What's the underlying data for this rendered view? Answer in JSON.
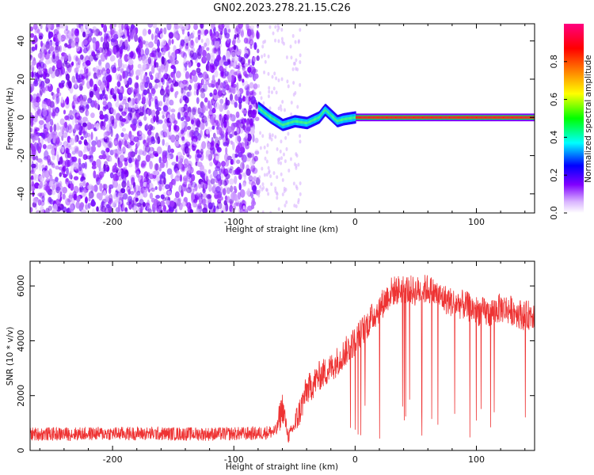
{
  "title": "GN02.2023.278.21.15.C26",
  "chart_data": [
    {
      "type": "heatmap",
      "title": "GN02.2023.278.21.15.C26",
      "xlabel": "Height of straight line (km)",
      "ylabel": "Frequency (Hz)",
      "xlim": [
        -268,
        148
      ],
      "ylim": [
        -50,
        49
      ],
      "x_ticks": [
        -200,
        -100,
        0,
        100
      ],
      "y_ticks": [
        -40,
        -20,
        0,
        20,
        40
      ],
      "colorbar": {
        "label": "Normalized spectral amplitude",
        "range": [
          0,
          1
        ],
        "ticks": [
          0.0,
          0.2,
          0.4,
          0.6,
          0.8
        ],
        "colormap": [
          "#ffffff",
          "#8000ff",
          "#0000ff",
          "#00ffff",
          "#00ff00",
          "#ffff00",
          "#ff8000",
          "#ff0000",
          "#ff0080"
        ]
      },
      "description_features": {
        "noise_region_x": [
          -268,
          -80
        ],
        "signal_onset_x": -80,
        "signal_frequency_profile": [
          {
            "x": -80,
            "y": 5
          },
          {
            "x": -70,
            "y": 0
          },
          {
            "x": -60,
            "y": -4
          },
          {
            "x": -50,
            "y": -2
          },
          {
            "x": -40,
            "y": -3
          },
          {
            "x": -30,
            "y": 0
          },
          {
            "x": -25,
            "y": 4
          },
          {
            "x": -20,
            "y": 1
          },
          {
            "x": -15,
            "y": -2
          },
          {
            "x": -10,
            "y": -1
          },
          {
            "x": 0,
            "y": 0
          },
          {
            "x": 150,
            "y": 0
          }
        ]
      }
    },
    {
      "type": "line",
      "xlabel": "Height of straight line (km)",
      "ylabel": "SNR (10 * v/v)",
      "xlim": [
        -268,
        148
      ],
      "ylim": [
        0,
        6900
      ],
      "x_ticks": [
        -200,
        -100,
        0,
        100
      ],
      "y_ticks": [
        0,
        2000,
        4000,
        6000
      ],
      "color": "#ee3333",
      "series": [
        {
          "x": [
            -268,
            -240,
            -200,
            -160,
            -120,
            -80,
            -65,
            -60,
            -55,
            -50,
            -45,
            -40,
            -35,
            -30,
            -20,
            -10,
            0,
            10,
            20,
            30,
            40,
            50,
            60,
            70,
            80,
            90,
            100,
            110,
            120,
            130,
            140,
            148
          ],
          "values": [
            600,
            600,
            620,
            610,
            600,
            620,
            700,
            1600,
            500,
            900,
            1500,
            2200,
            2400,
            2700,
            3000,
            3500,
            4000,
            4600,
            5200,
            5800,
            5900,
            5800,
            5900,
            5600,
            5400,
            5300,
            5100,
            5000,
            5200,
            5100,
            4900,
            5000
          ]
        }
      ]
    }
  ]
}
